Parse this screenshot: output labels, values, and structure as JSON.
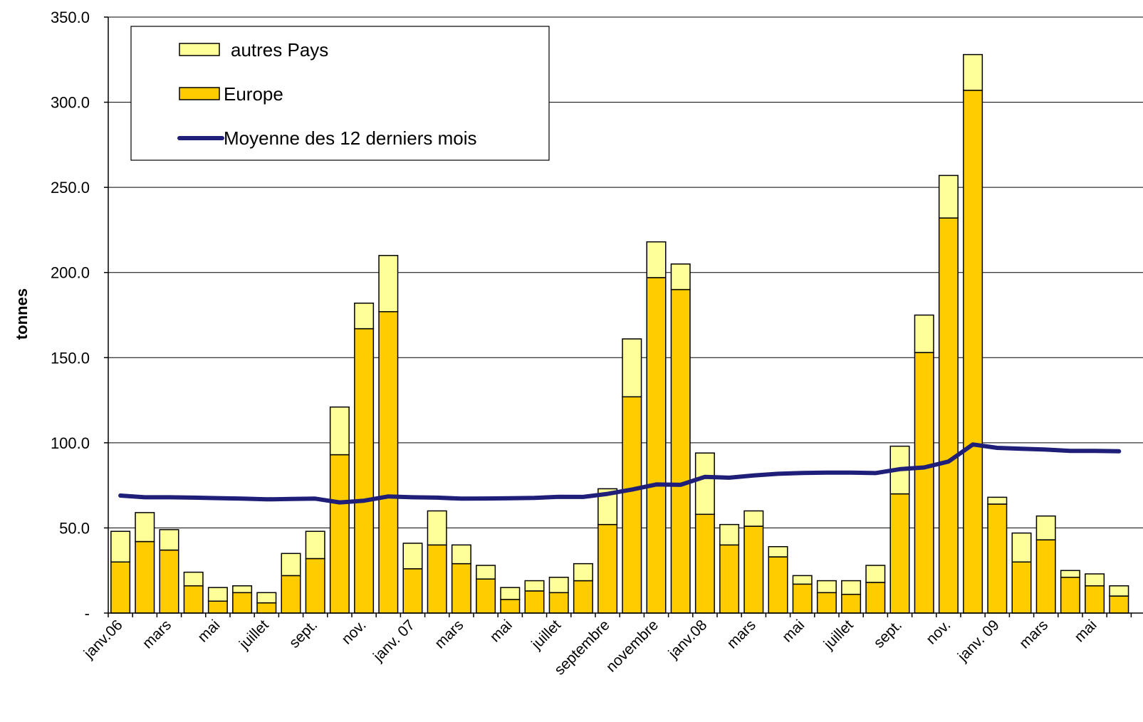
{
  "chart_data": {
    "type": "bar",
    "stacked": true,
    "ylabel": "tonnes",
    "ylim": [
      0,
      350
    ],
    "yticks": [
      "-",
      "50.0",
      "100.0",
      "150.0",
      "200.0",
      "250.0",
      "300.0",
      "350.0"
    ],
    "grid": true,
    "legend_position": "top-left",
    "xtick_labels": [
      "janv.06",
      "mars",
      "mai",
      "juillet",
      "sept.",
      "nov.",
      "janv. 07",
      "mars",
      "mai",
      "juillet",
      "septembre",
      "novembre",
      "janv.08",
      "mars",
      "mai",
      "juillet",
      "sept.",
      "nov.",
      "janv. 09",
      "mars",
      "mai"
    ],
    "series": [
      {
        "name": "Europe",
        "color": "#FFCC00",
        "values": [
          30,
          42,
          37,
          16,
          7,
          12,
          6,
          22,
          32,
          93,
          167,
          177,
          26,
          40,
          29,
          20,
          8,
          13,
          12,
          19,
          52,
          127,
          197,
          190,
          58,
          40,
          51,
          33,
          17,
          12,
          11,
          18,
          70,
          153,
          232,
          307,
          64,
          30,
          43,
          21,
          16,
          10
        ]
      },
      {
        "name": "autres Pays",
        "color": "#FFFF99",
        "values": [
          18,
          17,
          12,
          8,
          8,
          4,
          6,
          13,
          16,
          28,
          15,
          33,
          15,
          20,
          11,
          8,
          7,
          6,
          9,
          10,
          21,
          34,
          21,
          15,
          36,
          12,
          9,
          6,
          5,
          7,
          8,
          10,
          28,
          22,
          25,
          21,
          4,
          17,
          14,
          4,
          7,
          6
        ]
      },
      {
        "name": "Moyenne des 12 derniers mois",
        "type": "line",
        "color": "#1F1F7A",
        "values": [
          69,
          68,
          68,
          67.8,
          67.5,
          67.2,
          66.8,
          67,
          67.2,
          65,
          66,
          68.5,
          68,
          67.8,
          67.2,
          67.3,
          67.4,
          67.6,
          68.3,
          68.2,
          70,
          72.5,
          75.5,
          75.3,
          80,
          79.5,
          80.8,
          81.8,
          82.3,
          82.5,
          82.5,
          82.2,
          84.5,
          85.5,
          89,
          99,
          97,
          96.5,
          96,
          95.2,
          95.2,
          95
        ]
      }
    ]
  }
}
